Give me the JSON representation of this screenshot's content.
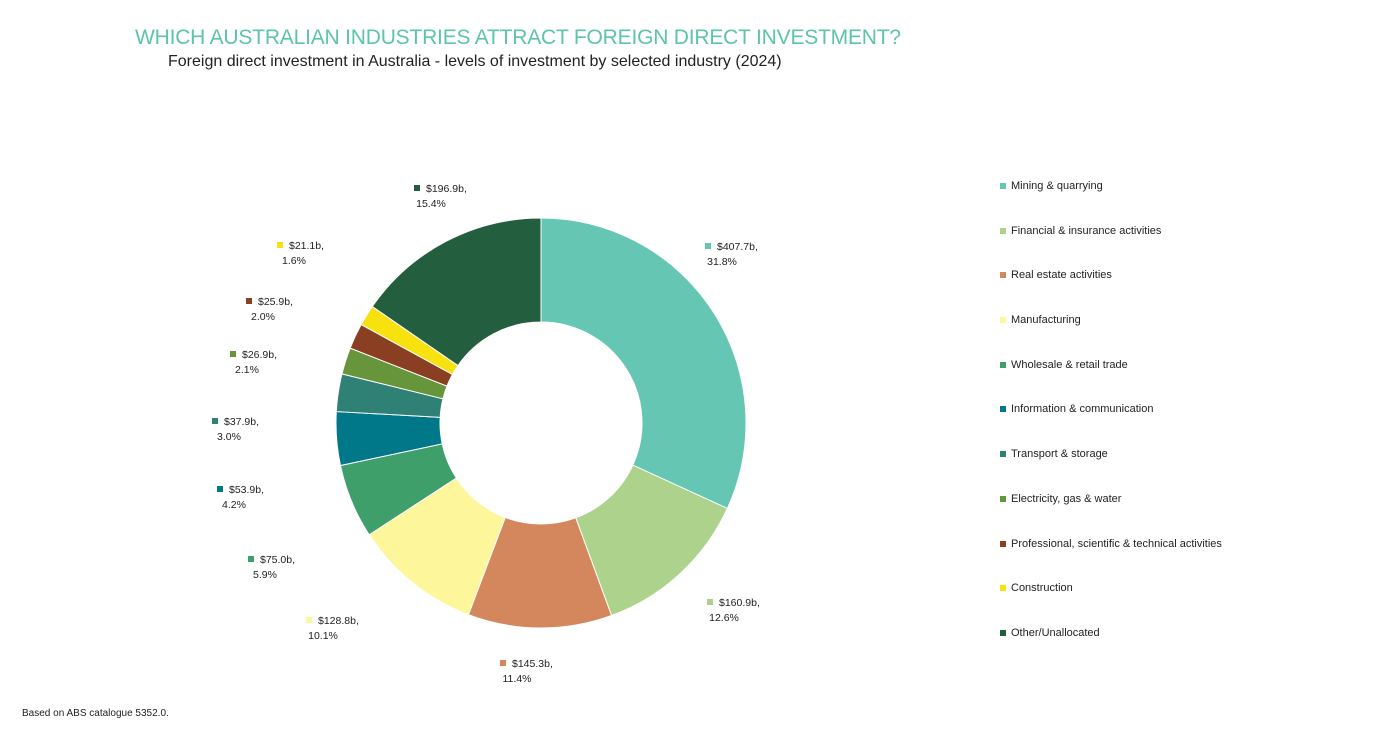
{
  "title": "WHICH AUSTRALIAN INDUSTRIES ATTRACT FOREIGN DIRECT INVESTMENT?",
  "subtitle": "Foreign direct investment in Australia - levels of investment by selected industry (2024)",
  "footnote": "Based on ABS catalogue 5352.0.",
  "chart_data": {
    "type": "pie",
    "variant": "donut",
    "title": "Foreign direct investment in Australia - levels of investment by selected industry (2024)",
    "legend_position": "right",
    "slices": [
      {
        "name": "Mining & quarrying",
        "value": 407.7,
        "value_label": "$407.7b,",
        "percent_label": "31.8%",
        "color": "#66c6b4"
      },
      {
        "name": "Financial & insurance activities",
        "value": 160.9,
        "value_label": "$160.9b,",
        "percent_label": "12.6%",
        "color": "#acd28c"
      },
      {
        "name": "Real estate activities",
        "value": 145.3,
        "value_label": "$145.3b,",
        "percent_label": "11.4%",
        "color": "#d4875d"
      },
      {
        "name": "Manufacturing",
        "value": 128.8,
        "value_label": "$128.8b,",
        "percent_label": "10.1%",
        "color": "#fdf69a"
      },
      {
        "name": "Wholesale & retail trade",
        "value": 75.0,
        "value_label": "$75.0b,",
        "percent_label": "5.9%",
        "color": "#3f9f6b"
      },
      {
        "name": "Information & communication",
        "value": 53.9,
        "value_label": "$53.9b,",
        "percent_label": "4.2%",
        "color": "#00788a"
      },
      {
        "name": "Transport & storage",
        "value": 37.9,
        "value_label": "$37.9b,",
        "percent_label": "3.0%",
        "color": "#2f8175"
      },
      {
        "name": "Electricity, gas & water",
        "value": 26.9,
        "value_label": "$26.9b,",
        "percent_label": "2.1%",
        "color": "#67953b"
      },
      {
        "name": "Professional, scientific & technical activities",
        "value": 25.9,
        "value_label": "$25.9b,",
        "percent_label": "2.0%",
        "color": "#8b3f22"
      },
      {
        "name": "Construction",
        "value": 21.1,
        "value_label": "$21.1b,",
        "percent_label": "1.6%",
        "color": "#f7e10f"
      },
      {
        "name": "Other/Unallocated",
        "value": 196.9,
        "value_label": "$196.9b,",
        "percent_label": "15.4%",
        "color": "#235f3f"
      }
    ]
  }
}
